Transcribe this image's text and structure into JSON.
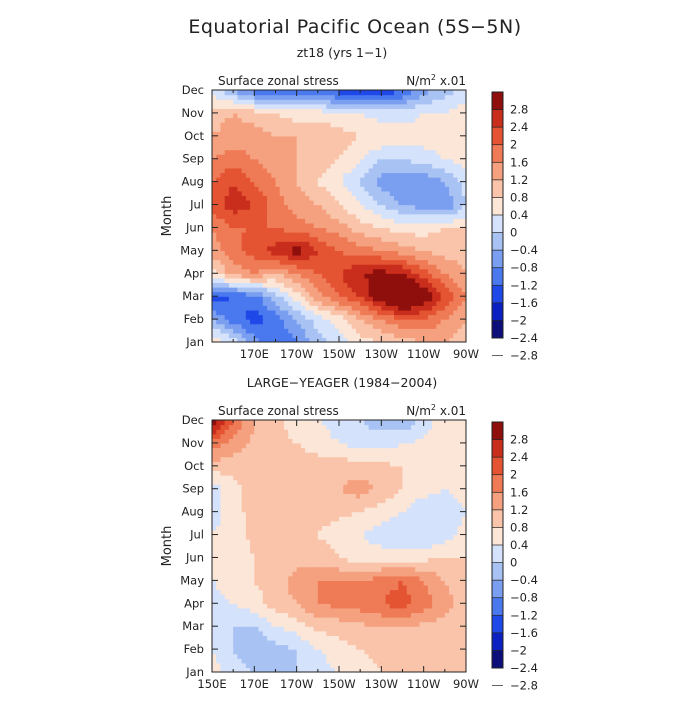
{
  "page": {
    "title": "Equatorial Pacific Ocean (5S−5N)"
  },
  "colorbar": {
    "colors": [
      "#0c0f7a",
      "#0a20c0",
      "#1f48e8",
      "#4a78ee",
      "#7a9ef0",
      "#a8c2f4",
      "#d4e2fb",
      "#fbe6d8",
      "#f9c4aa",
      "#f5a17f",
      "#ef7b56",
      "#e45433",
      "#c92d1c",
      "#8e0f0c"
    ],
    "levels": [
      -2.8,
      -2.4,
      -2,
      -1.6,
      -1.2,
      -0.8,
      -0.4,
      0,
      0.4,
      0.8,
      1.2,
      1.6,
      2,
      2.4,
      2.8
    ],
    "labels": [
      "2.8",
      "2.4",
      "2",
      "1.6",
      "1.2",
      "0.8",
      "0.4",
      "0",
      "−0.4",
      "−0.8",
      "−1.2",
      "−1.6",
      "−2",
      "−2.4",
      "−2.8"
    ]
  },
  "chart_data": [
    {
      "type": "heatmap",
      "title": "zt18 (yrs 1−1)",
      "label_left": "Surface zonal stress",
      "label_right_base": "N/m",
      "label_right_sup": "2",
      "label_right_tail": " x.01",
      "ylabel": "Month",
      "xlabel": "",
      "x": [
        150,
        160,
        170,
        180,
        190,
        200,
        210,
        220,
        230,
        240,
        250,
        260,
        270
      ],
      "x_ticks": [
        "150E",
        "170E",
        "170W",
        "150W",
        "130W",
        "110W",
        "90W"
      ],
      "show_x_tick_labels": [
        "170E",
        "170W",
        "150W",
        "130W",
        "110W",
        "90W"
      ],
      "y": [
        "Jan",
        "Feb",
        "Mar",
        "Apr",
        "May",
        "Jun",
        "Jul",
        "Aug",
        "Sep",
        "Oct",
        "Nov",
        "Dec"
      ],
      "z": [
        [
          0.0,
          -0.6,
          -1.4,
          -2.0,
          -1.6,
          -1.0,
          -0.6,
          -0.2,
          0.0,
          0.2,
          0.4,
          0.4,
          0.2
        ],
        [
          -1.2,
          -1.8,
          -2.2,
          -1.8,
          -1.2,
          -0.6,
          -0.2,
          0.4,
          0.8,
          1.2,
          1.2,
          0.8,
          0.4
        ],
        [
          -2.2,
          -2.0,
          -1.8,
          -1.0,
          -0.2,
          0.6,
          1.2,
          1.6,
          2.4,
          3.0,
          2.4,
          1.6,
          0.8
        ],
        [
          -0.2,
          0.6,
          0.8,
          0.4,
          0.8,
          1.2,
          1.6,
          2.0,
          2.2,
          2.0,
          1.4,
          0.8,
          0.4
        ],
        [
          0.6,
          1.0,
          1.4,
          1.8,
          2.2,
          1.6,
          1.2,
          1.0,
          0.8,
          0.6,
          0.4,
          0.2,
          0.2
        ],
        [
          0.8,
          1.2,
          1.2,
          1.2,
          1.0,
          0.8,
          0.6,
          0.2,
          0.0,
          -0.2,
          -0.2,
          0.0,
          0.0
        ],
        [
          1.4,
          1.8,
          1.6,
          1.0,
          0.6,
          0.4,
          0.0,
          -0.4,
          -0.8,
          -1.2,
          -1.4,
          -1.6,
          -0.8
        ],
        [
          1.2,
          1.6,
          1.2,
          0.8,
          0.4,
          0.0,
          -0.4,
          -0.8,
          -1.4,
          -1.6,
          -1.6,
          -1.2,
          -0.6
        ],
        [
          0.8,
          1.0,
          0.8,
          0.6,
          0.4,
          0.2,
          0.0,
          -0.4,
          -0.8,
          -0.8,
          -0.6,
          -0.4,
          -0.2
        ],
        [
          0.4,
          0.6,
          0.6,
          0.4,
          0.4,
          0.4,
          0.2,
          0.0,
          0.0,
          -0.2,
          -0.2,
          -0.2,
          -0.2
        ],
        [
          0.2,
          0.4,
          0.2,
          0.0,
          -0.2,
          -0.2,
          -0.4,
          -0.4,
          -0.6,
          -0.6,
          -0.4,
          -0.4,
          -0.2
        ],
        [
          -0.6,
          -1.2,
          -1.8,
          -2.0,
          -2.0,
          -1.8,
          -2.2,
          -2.4,
          -2.4,
          -2.0,
          -1.4,
          -1.0,
          -0.6
        ]
      ]
    },
    {
      "type": "heatmap",
      "title": "LARGE−YEAGER (1984−2004)",
      "label_left": "Surface zonal stress",
      "label_right_base": "N/m",
      "label_right_sup": "2",
      "label_right_tail": " x.01",
      "ylabel": "Month",
      "xlabel": "",
      "x": [
        150,
        160,
        170,
        180,
        190,
        200,
        210,
        220,
        230,
        240,
        250,
        260,
        270
      ],
      "x_ticks": [
        "150E",
        "170E",
        "170W",
        "150W",
        "130W",
        "110W",
        "90W"
      ],
      "show_x_tick_labels": [
        "150E",
        "170E",
        "170W",
        "150W",
        "130W",
        "110W",
        "90W"
      ],
      "y": [
        "Jan",
        "Feb",
        "Mar",
        "Apr",
        "May",
        "Jun",
        "Jul",
        "Aug",
        "Sep",
        "Oct",
        "Nov",
        "Dec"
      ],
      "z": [
        [
          -0.2,
          -0.6,
          -0.8,
          -1.0,
          -0.8,
          -0.6,
          -0.4,
          -0.2,
          0.0,
          0.0,
          0.0,
          0.0,
          0.0
        ],
        [
          -0.4,
          -0.8,
          -1.2,
          -1.0,
          -0.8,
          -0.4,
          -0.2,
          0.0,
          0.1,
          0.1,
          0.1,
          0.0,
          0.0
        ],
        [
          -0.6,
          -0.8,
          -0.8,
          -0.4,
          -0.2,
          0.1,
          0.2,
          0.3,
          0.4,
          0.4,
          0.3,
          0.2,
          0.1
        ],
        [
          -0.6,
          -0.4,
          -0.2,
          0.2,
          0.4,
          0.8,
          0.9,
          1.0,
          1.2,
          1.4,
          1.0,
          0.6,
          0.2
        ],
        [
          -0.4,
          -0.2,
          0.0,
          0.2,
          0.6,
          0.8,
          0.8,
          0.8,
          1.0,
          1.2,
          0.8,
          0.4,
          0.1
        ],
        [
          -0.4,
          -0.2,
          0.0,
          0.2,
          0.2,
          0.2,
          0.0,
          -0.2,
          -0.2,
          -0.2,
          -0.1,
          0.0,
          0.0
        ],
        [
          -0.4,
          -0.2,
          0.1,
          0.2,
          0.1,
          0.0,
          -0.2,
          -0.4,
          -0.6,
          -0.8,
          -0.8,
          -0.6,
          -0.2
        ],
        [
          -0.6,
          -0.2,
          0.2,
          0.2,
          0.2,
          0.1,
          0.1,
          0.0,
          -0.2,
          -0.4,
          -0.8,
          -0.8,
          -0.4
        ],
        [
          -0.6,
          -0.2,
          0.2,
          0.3,
          0.3,
          0.3,
          0.4,
          0.6,
          0.3,
          0.0,
          -0.2,
          -0.4,
          -0.2
        ],
        [
          0.2,
          0.2,
          0.2,
          0.3,
          0.2,
          0.2,
          0.2,
          0.2,
          0.1,
          0.0,
          -0.2,
          -0.2,
          -0.1
        ],
        [
          1.0,
          0.6,
          0.3,
          0.1,
          0.0,
          -0.2,
          -0.4,
          -0.6,
          -0.6,
          -0.4,
          -0.3,
          -0.2,
          -0.1
        ],
        [
          2.4,
          1.2,
          0.4,
          0.1,
          -0.2,
          -0.4,
          -0.6,
          -0.8,
          -1.0,
          -1.2,
          -0.6,
          -0.2,
          0.0
        ]
      ]
    }
  ]
}
